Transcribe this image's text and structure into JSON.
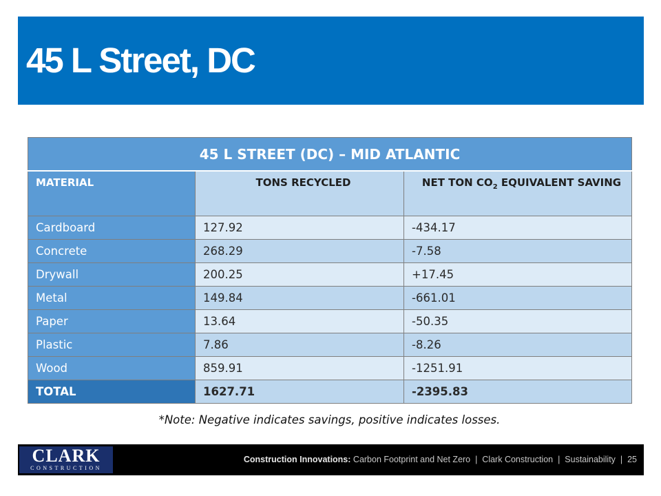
{
  "slide": {
    "title": "45 L Street, DC",
    "page_number": "25"
  },
  "table": {
    "title": "45 L STREET (DC) – MID ATLANTIC",
    "headers": {
      "material": "MATERIAL",
      "tons": "TONS RECYCLED",
      "co2_prefix": "NET TON CO",
      "co2_sub": "2",
      "co2_suffix": " EQUIVALENT SAVING"
    },
    "rows": [
      {
        "material": "Cardboard",
        "tons": "127.92",
        "co2": "-434.17"
      },
      {
        "material": "Concrete",
        "tons": "268.29",
        "co2": "-7.58"
      },
      {
        "material": "Drywall",
        "tons": "200.25",
        "co2": "+17.45"
      },
      {
        "material": "Metal",
        "tons": "149.84",
        "co2": "-661.01"
      },
      {
        "material": "Paper",
        "tons": "13.64",
        "co2": "-50.35"
      },
      {
        "material": "Plastic",
        "tons": "7.86",
        "co2": "-8.26"
      },
      {
        "material": "Wood",
        "tons": "859.91",
        "co2": "-1251.91"
      }
    ],
    "total": {
      "material": "TOTAL",
      "tons": "1627.71",
      "co2": "-2395.83"
    }
  },
  "note": "*Note: Negative indicates savings, positive indicates losses.",
  "footer": {
    "logo_main": "CLARK",
    "logo_sub": "CONSTRUCTION",
    "bold_label": "Construction Innovations:",
    "topic": " Carbon Footprint and Net Zero",
    "company": "Clark Construction",
    "section": "Sustainability",
    "separator": "|"
  },
  "colors": {
    "banner": "#0070c0",
    "table_header": "#5b9bd5",
    "table_light": "#ddebf7",
    "table_mid": "#bdd7ee",
    "logo": "#1a2f6b"
  }
}
